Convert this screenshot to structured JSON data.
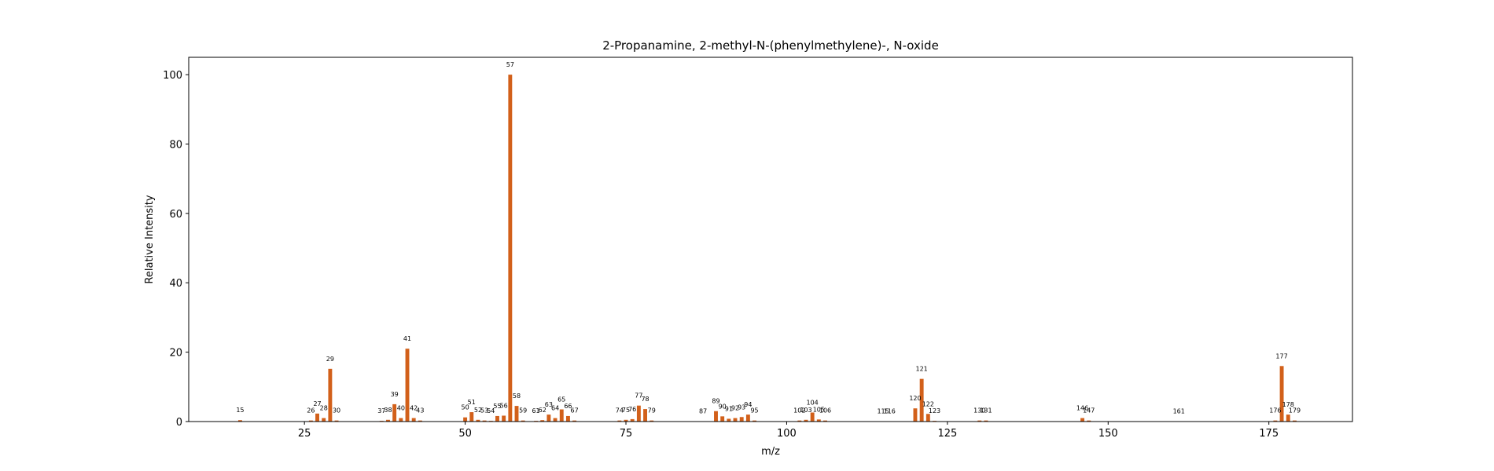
{
  "chart_data": {
    "type": "bar",
    "title": "2-Propanamine, 2-methyl-N-(phenylmethylene)-, N-oxide",
    "xlabel": "m/z",
    "ylabel": "Relative Intensity",
    "xlim": [
      7,
      188
    ],
    "ylim": [
      0,
      105
    ],
    "xticks": [
      25,
      50,
      75,
      100,
      125,
      150,
      175
    ],
    "yticks": [
      0,
      20,
      40,
      60,
      80,
      100
    ],
    "grid": false,
    "bar_color": "#d2601a",
    "x": [
      15,
      26,
      27,
      28,
      29,
      30,
      37,
      38,
      39,
      40,
      41,
      42,
      43,
      50,
      51,
      52,
      53,
      54,
      55,
      56,
      57,
      58,
      59,
      61,
      62,
      63,
      64,
      65,
      66,
      67,
      74,
      75,
      76,
      77,
      78,
      79,
      87,
      89,
      90,
      91,
      92,
      93,
      94,
      95,
      102,
      103,
      104,
      105,
      106,
      115,
      116,
      120,
      121,
      122,
      123,
      130,
      131,
      146,
      147,
      161,
      176,
      177,
      178,
      179
    ],
    "values": [
      0.4,
      0.3,
      2.3,
      1.0,
      15.2,
      0.3,
      0.2,
      0.5,
      5.0,
      1.0,
      21.0,
      1.0,
      0.3,
      1.2,
      2.7,
      0.5,
      0.3,
      0.2,
      1.6,
      1.7,
      100,
      4.5,
      0.3,
      0.2,
      0.4,
      2.0,
      1.0,
      3.5,
      1.6,
      0.3,
      0.3,
      0.5,
      0.7,
      4.6,
      3.6,
      0.3,
      0.1,
      3.0,
      1.5,
      0.8,
      1.0,
      1.3,
      2.0,
      0.3,
      0.3,
      0.5,
      2.6,
      0.6,
      0.3,
      0.1,
      0.1,
      3.8,
      12.3,
      2.2,
      0.2,
      0.3,
      0.3,
      1.0,
      0.3,
      0.1,
      0.3,
      16.0,
      2.0,
      0.3
    ]
  }
}
